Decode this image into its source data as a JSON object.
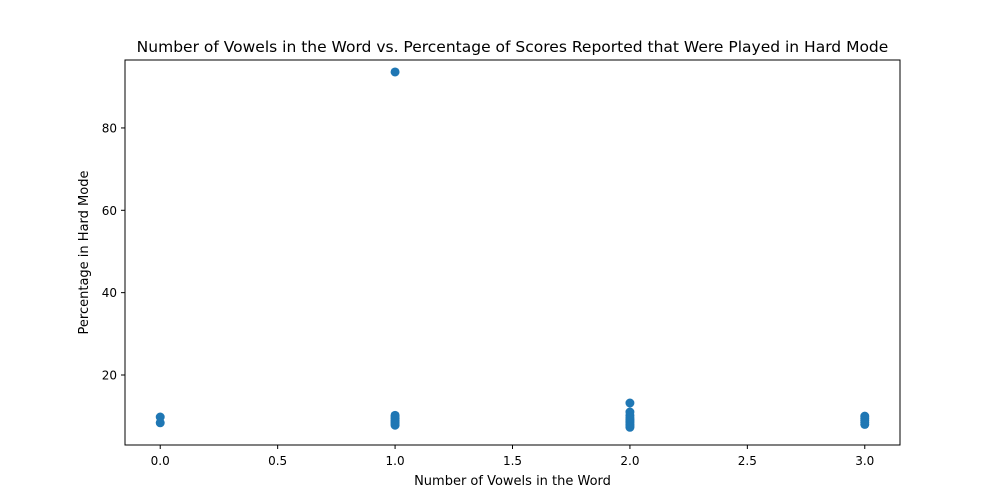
{
  "chart_data": {
    "type": "scatter",
    "title": "Number of Vowels in the Word vs. Percentage of Scores Reported that Were Played in Hard Mode",
    "xlabel": "Number of Vowels in the Word",
    "ylabel": "Percentage in Hard Mode",
    "xlim": [
      -0.15,
      3.15
    ],
    "ylim": [
      3.0,
      96.5
    ],
    "xticks": [
      0.0,
      0.5,
      1.0,
      1.5,
      2.0,
      2.5,
      3.0
    ],
    "xtick_labels": [
      "0.0",
      "0.5",
      "1.0",
      "1.5",
      "2.0",
      "2.5",
      "3.0"
    ],
    "yticks": [
      20,
      40,
      60,
      80
    ],
    "ytick_labels": [
      "20",
      "40",
      "60",
      "80"
    ],
    "grid": false,
    "marker_color": "#1f77b4",
    "points": [
      {
        "x": 0,
        "y": 9.8
      },
      {
        "x": 0,
        "y": 8.4
      },
      {
        "x": 1,
        "y": 93.6
      },
      {
        "x": 1,
        "y": 10.2
      },
      {
        "x": 1,
        "y": 9.8
      },
      {
        "x": 1,
        "y": 9.4
      },
      {
        "x": 1,
        "y": 9.0
      },
      {
        "x": 1,
        "y": 8.7
      },
      {
        "x": 1,
        "y": 8.4
      },
      {
        "x": 1,
        "y": 8.1
      },
      {
        "x": 1,
        "y": 7.8
      },
      {
        "x": 2,
        "y": 13.2
      },
      {
        "x": 2,
        "y": 11.0
      },
      {
        "x": 2,
        "y": 10.2
      },
      {
        "x": 2,
        "y": 9.6
      },
      {
        "x": 2,
        "y": 9.2
      },
      {
        "x": 2,
        "y": 8.8
      },
      {
        "x": 2,
        "y": 8.4
      },
      {
        "x": 2,
        "y": 8.0
      },
      {
        "x": 2,
        "y": 7.6
      },
      {
        "x": 2,
        "y": 7.3
      },
      {
        "x": 3,
        "y": 10.0
      },
      {
        "x": 3,
        "y": 9.5
      },
      {
        "x": 3,
        "y": 9.0
      },
      {
        "x": 3,
        "y": 8.5
      },
      {
        "x": 3,
        "y": 8.0
      }
    ]
  }
}
